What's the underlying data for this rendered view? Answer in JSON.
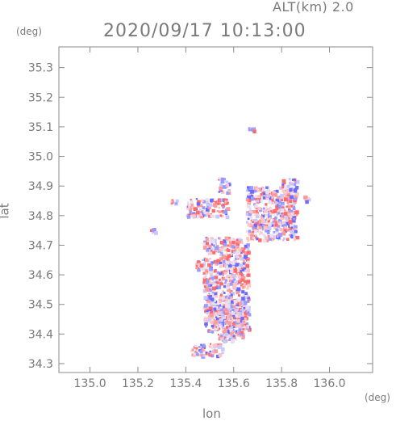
{
  "chart_data": {
    "type": "heatmap",
    "title": "2020/09/17 10:13:00",
    "subtitle": "ALT(km) 2.0",
    "xlabel": "lon",
    "ylabel": "lat",
    "x_unit": "(deg)",
    "y_unit": "(deg)",
    "xlim": [
      134.87,
      136.18
    ],
    "ylim": [
      34.27,
      35.37
    ],
    "x_ticks": [
      135.0,
      135.2,
      135.4,
      135.6,
      135.8,
      136.0
    ],
    "x_tick_labels": [
      "135.0",
      "135.2",
      "135.4",
      "135.6",
      "135.8",
      "136.0"
    ],
    "y_ticks": [
      34.3,
      34.4,
      34.5,
      34.6,
      34.7,
      34.8,
      34.9,
      35.0,
      35.1,
      35.2,
      35.3
    ],
    "y_tick_labels": [
      "34.3",
      "34.4",
      "34.5",
      "34.6",
      "34.7",
      "34.8",
      "34.9",
      "35.0",
      "35.1",
      "35.2",
      "35.3"
    ],
    "colors": {
      "positive": "#ff6a6a",
      "negative": "#6a6aff",
      "axis": "#8a8a8a"
    },
    "echo_regions": [
      {
        "lon": [
          135.47,
          135.66
        ],
        "lat": [
          34.41,
          34.73
        ]
      },
      {
        "lon": [
          135.53,
          135.64
        ],
        "lat": [
          34.38,
          34.52
        ]
      },
      {
        "lon": [
          135.65,
          135.86
        ],
        "lat": [
          34.72,
          34.9
        ]
      },
      {
        "lon": [
          135.8,
          135.86
        ],
        "lat": [
          34.86,
          34.93
        ]
      },
      {
        "lon": [
          135.53,
          135.58
        ],
        "lat": [
          34.88,
          34.93
        ]
      },
      {
        "lon": [
          135.4,
          135.57
        ],
        "lat": [
          34.8,
          34.86
        ]
      },
      {
        "lon": [
          135.42,
          135.55
        ],
        "lat": [
          34.33,
          34.37
        ]
      },
      {
        "lon": [
          135.33,
          135.36
        ],
        "lat": [
          34.84,
          34.86
        ]
      },
      {
        "lon": [
          135.25,
          135.27
        ],
        "lat": [
          34.74,
          34.76
        ]
      },
      {
        "lon": [
          135.89,
          135.91
        ],
        "lat": [
          34.85,
          34.87
        ]
      },
      {
        "lon": [
          135.66,
          135.68
        ],
        "lat": [
          35.09,
          35.1
        ]
      },
      {
        "lon": [
          135.44,
          135.48
        ],
        "lat": [
          34.62,
          34.66
        ]
      }
    ]
  }
}
